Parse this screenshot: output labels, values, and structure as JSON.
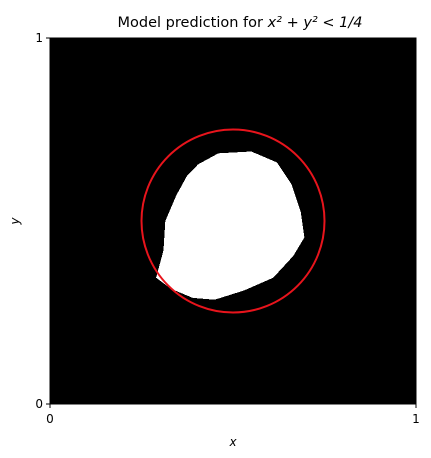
{
  "chart_data": {
    "type": "heatmap",
    "title": "Model prediction for x² + y² < 1/4",
    "title_parts": {
      "prefix": "Model prediction for ",
      "formula": "x² + y² < 1/4"
    },
    "xlabel": "x",
    "ylabel": "y",
    "xlim": [
      0,
      1
    ],
    "ylim": [
      0,
      1
    ],
    "x_tick_labels": [
      "0",
      "1"
    ],
    "y_tick_labels": [
      "0",
      "1"
    ],
    "grid": false,
    "colormap": {
      "background_value": 0,
      "background_color": "#000000",
      "predicted_value": 1,
      "predicted_color": "#ffffff"
    },
    "true_boundary": {
      "shape": "circle",
      "center": [
        0.5,
        0.5
      ],
      "radius": 0.25,
      "color": "#e8141c"
    },
    "predicted_region_boundary": [
      [
        0.46,
        0.685
      ],
      [
        0.55,
        0.69
      ],
      [
        0.62,
        0.66
      ],
      [
        0.66,
        0.6
      ],
      [
        0.685,
        0.525
      ],
      [
        0.695,
        0.455
      ],
      [
        0.665,
        0.405
      ],
      [
        0.61,
        0.345
      ],
      [
        0.53,
        0.31
      ],
      [
        0.45,
        0.285
      ],
      [
        0.39,
        0.29
      ],
      [
        0.33,
        0.315
      ],
      [
        0.29,
        0.345
      ],
      [
        0.31,
        0.42
      ],
      [
        0.315,
        0.5
      ],
      [
        0.345,
        0.57
      ],
      [
        0.375,
        0.625
      ],
      [
        0.405,
        0.655
      ]
    ]
  }
}
